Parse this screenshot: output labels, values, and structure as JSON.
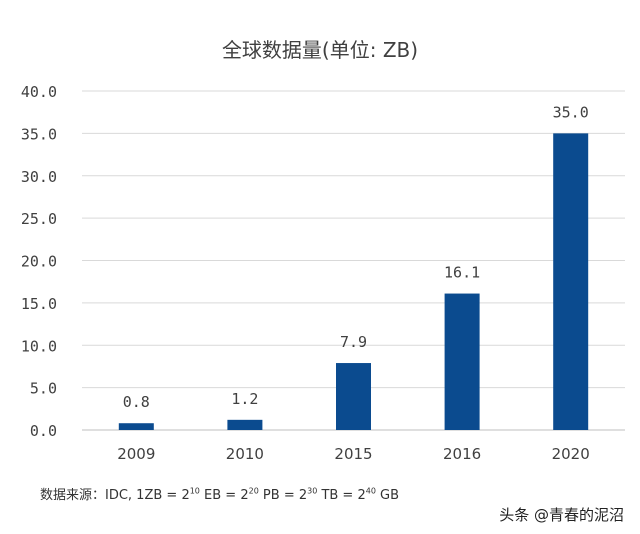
{
  "chart_data": {
    "type": "bar",
    "title": "全球数据量(单位: ZB)",
    "xlabel": "",
    "ylabel": "",
    "categories": [
      "2009",
      "2010",
      "2015",
      "2016",
      "2020"
    ],
    "values": [
      0.8,
      1.2,
      7.9,
      16.1,
      35.0
    ],
    "value_labels": [
      "0.8",
      "1.2",
      "7.9",
      "16.1",
      "35.0"
    ],
    "ylim": [
      0,
      40
    ],
    "yticks": [
      0,
      5,
      10,
      15,
      20,
      25,
      30,
      35,
      40
    ],
    "ytick_labels": [
      "0.0",
      "5.0",
      "10.0",
      "15.0",
      "20.0",
      "25.0",
      "30.0",
      "35.0",
      "40.0"
    ],
    "grid": true,
    "legend": "none",
    "bar_color": "#0b4b8f",
    "grid_color": "#d9d9d9"
  },
  "footnote": {
    "prefix": "数据来源：IDC, 1ZB = 2",
    "exp1": "10",
    "mid1": " EB = 2",
    "exp2": "20",
    "mid2": " PB = 2",
    "exp3": "30",
    "mid3": " TB = 2",
    "exp4": "40",
    "suffix": " GB"
  },
  "watermark": "头条 @青春的泥沼"
}
